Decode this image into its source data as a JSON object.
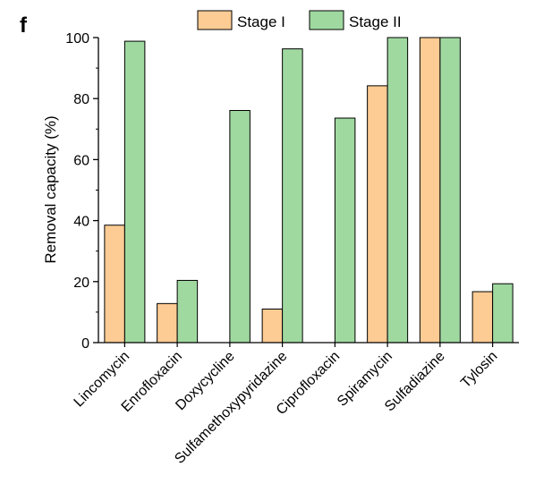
{
  "panel_label": "f",
  "chart_data": {
    "type": "bar",
    "categories": [
      "Lincomycin",
      "Enrofloxacin",
      "Doxycycline",
      "Sulfamethoxypyridazine",
      "Ciprofloxacin",
      "Spiramycin",
      "Sulfadiazine",
      "Tylosin"
    ],
    "series": [
      {
        "name": "Stage I",
        "values": [
          38.5,
          12.8,
          0,
          11,
          0,
          84.2,
          100,
          16.7
        ],
        "color": "#FDCB94"
      },
      {
        "name": "Stage II",
        "values": [
          98.8,
          20.4,
          76.1,
          96.3,
          73.6,
          100,
          100,
          19.3
        ],
        "color": "#9FD9A0"
      }
    ],
    "title": "",
    "xlabel": "",
    "ylabel": "Removal capacity (%)",
    "ylim": [
      0,
      100
    ],
    "yticks": [
      "0",
      "20",
      "40",
      "60",
      "80",
      "100"
    ],
    "grid": false,
    "legend_position": "top"
  }
}
